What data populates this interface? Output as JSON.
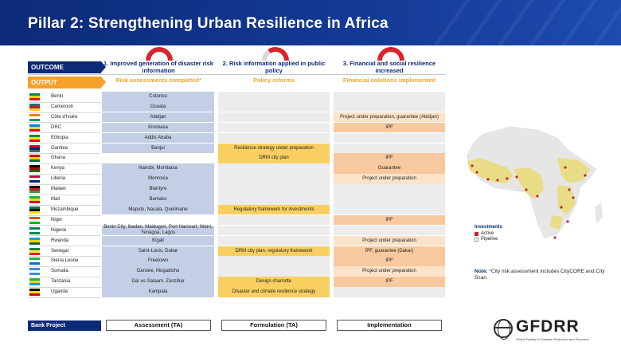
{
  "title": "Pillar 2: Strengthening Urban Resilience in Africa",
  "labels": {
    "outcome": "OUTCOME",
    "output": "OUTPUT",
    "bank_project": "Bank Project"
  },
  "columns": [
    {
      "outcome": "1. Improved generation of disaster risk information",
      "output": "Risk assessments completed*",
      "bank": "Assessment (TA)"
    },
    {
      "outcome": "2. Risk information applied in public policy",
      "output": "Policy reforms",
      "bank": "Formulation (TA)"
    },
    {
      "outcome": "3. Financial and social resilience increased",
      "output": "Financial solutions implemented",
      "bank": "Implementation"
    }
  ],
  "rows": [
    {
      "country": "Benin",
      "c1": "Cotonou",
      "c2": "",
      "c3": ""
    },
    {
      "country": "Cameroon",
      "c1": "Douala",
      "c2": "",
      "c3": ""
    },
    {
      "country": "Côte d'Ivoire",
      "c1": "Abidjan",
      "c2": "",
      "c3": "Project under preparation, guarantee (Abidjan)"
    },
    {
      "country": "DRC",
      "c1": "Kinshasa",
      "c2": "",
      "c3": "IPF"
    },
    {
      "country": "Ethiopia",
      "c1": "Addis Ababa",
      "c2": "",
      "c3": ""
    },
    {
      "country": "Gambia",
      "c1": "Banjul",
      "c2": "Resilience strategy under preparation",
      "c3": ""
    },
    {
      "country": "Ghana",
      "c1": "",
      "c2": "DRM city plan",
      "c3": "IPF"
    },
    {
      "country": "Kenya",
      "c1": "Nairobi, Mombasa",
      "c2": "",
      "c3": "Guarantee"
    },
    {
      "country": "Liberia",
      "c1": "Monrovia",
      "c2": "",
      "c3": "Project under preparation"
    },
    {
      "country": "Malawi",
      "c1": "Blantyre",
      "c2": "",
      "c3": ""
    },
    {
      "country": "Mali",
      "c1": "Bamako",
      "c2": "",
      "c3": ""
    },
    {
      "country": "Mozambique",
      "c1": "Maputo, Nacala, Quelimane",
      "c2": "Regulatory framework for investments",
      "c3": ""
    },
    {
      "country": "Niger",
      "c1": "",
      "c2": "",
      "c3": "IPF"
    },
    {
      "country": "Nigeria",
      "c1": "Benin City, Ibadan, Maiduguri, Port Harcourt, Warri, Yenagoa, Lagos",
      "c2": "",
      "c3": ""
    },
    {
      "country": "Rwanda",
      "c1": "Kigali",
      "c2": "",
      "c3": "Project under preparation"
    },
    {
      "country": "Senegal",
      "c1": "Saint-Louis, Dakar",
      "c2": "DRM city plan, regulatory framework",
      "c3": "IPF, guarantee (Dakar)"
    },
    {
      "country": "Sierra Leone",
      "c1": "Freetown",
      "c2": "",
      "c3": "IPF"
    },
    {
      "country": "Somalia",
      "c1": "Garowe, Mogadishu",
      "c2": "",
      "c3": "Project under preparation"
    },
    {
      "country": "Tanzania",
      "c1": "Dar es Salaam, Zanzibar",
      "c2": "Design charrette",
      "c3": "IPF"
    },
    {
      "country": "Uganda",
      "c1": "Kampala",
      "c2": "Disaster and climate resilience strategy",
      "c3": ""
    }
  ],
  "legend": {
    "title": "Investments",
    "active": "Active",
    "pipeline": "Pipeline"
  },
  "note": {
    "label": "Note:",
    "text": " *City risk assessment includes CityCORE and City Scan."
  },
  "logo": {
    "word": "GFDRR",
    "tagline": "Global Facility for Disaster Reduction and Recovery"
  },
  "colors": {
    "navy": "#0c2a78",
    "orange": "#f6a12a",
    "assessment": "#c3cfe6",
    "policy": "#f9cf61",
    "finance": "#f8c99f"
  }
}
